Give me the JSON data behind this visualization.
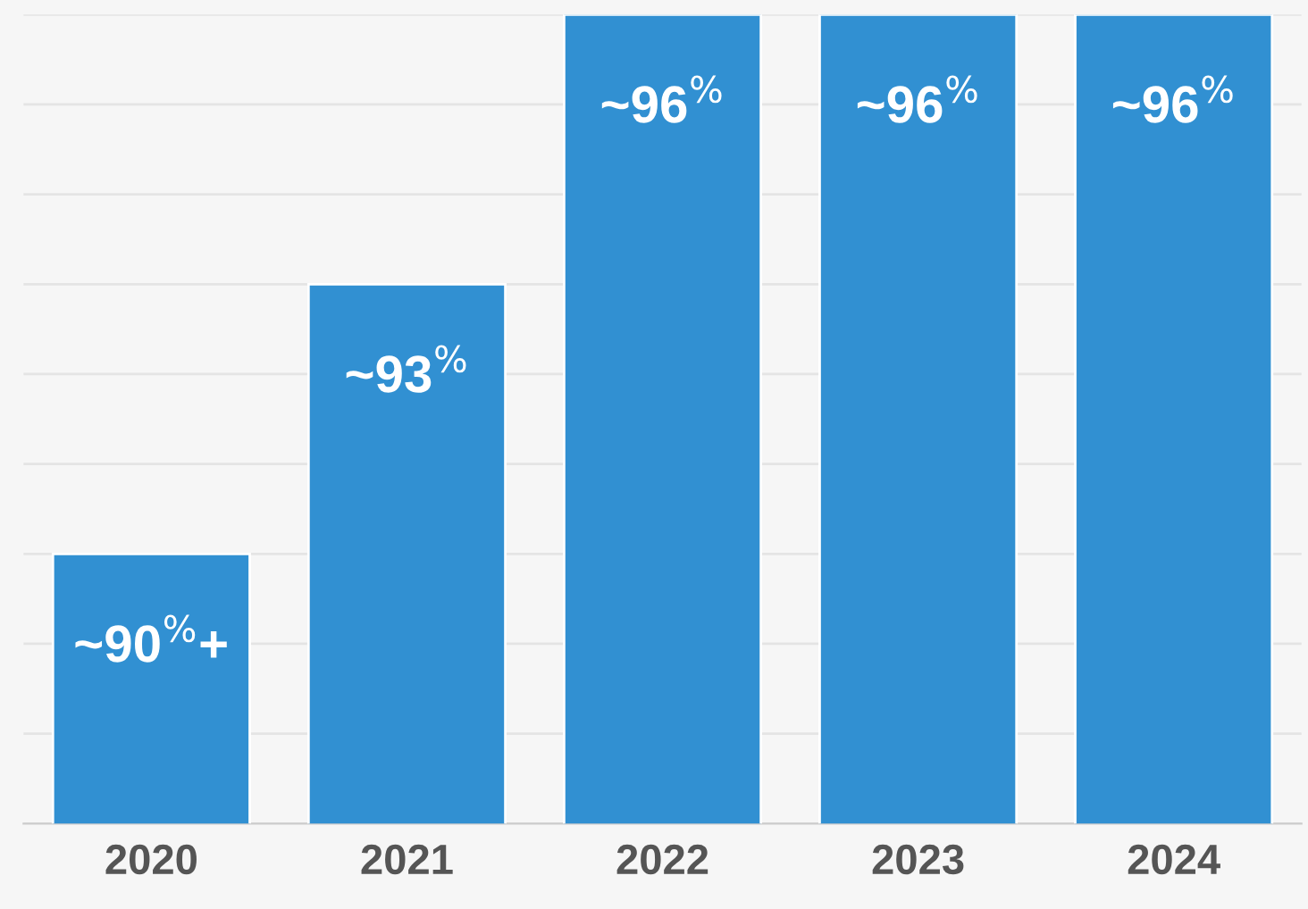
{
  "chart_data": {
    "type": "bar",
    "categories": [
      "2020",
      "2021",
      "2022",
      "2023",
      "2024"
    ],
    "values": [
      90,
      93,
      96,
      96,
      96
    ],
    "value_labels": [
      "~90$^{%}$+",
      "~93$^{%}$",
      "~96$^{%}$",
      "~96$^{%}$",
      "~96$^{%}$"
    ],
    "color": "#3190d2",
    "ylim": [
      87,
      96
    ],
    "grid": "y",
    "tick_labels": "x"
  }
}
